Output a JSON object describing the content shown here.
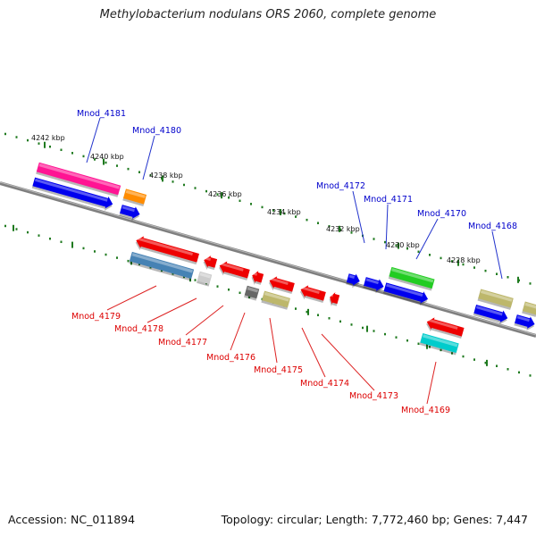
{
  "title": "Methylobacterium nodulans ORS 2060, complete genome",
  "accession_text": "Accession: NC_011894",
  "topology_text": "Topology: circular; Length: 7,772,460 bp; Genes: 7,447",
  "colors": {
    "backbone": "#7f7f7f",
    "tick": "#1f7a1f",
    "top_strand_label": "#0000cc",
    "bottom_strand_label": "#dd0000",
    "leader_top": "#2233cc",
    "leader_bottom": "#dd2222"
  },
  "coordinates": [
    "4242 kbp",
    "4240 kbp",
    "4238 kbp",
    "4236 kbp",
    "4234 kbp",
    "4232 kbp",
    "4230 kbp",
    "4228 kbp"
  ],
  "top_labels": [
    "Mnod_4181",
    "Mnod_4180",
    "Mnod_4172",
    "Mnod_4171",
    "Mnod_4170",
    "Mnod_4168"
  ],
  "bottom_labels": [
    "Mnod_4179",
    "Mnod_4178",
    "Mnod_4177",
    "Mnod_4176",
    "Mnod_4175",
    "Mnod_4174",
    "Mnod_4173",
    "Mnod_4169"
  ],
  "features": [
    {
      "color": "#ff1493"
    },
    {
      "color": "#0000ee"
    },
    {
      "color": "#ff8c00"
    },
    {
      "color": "#0000ee"
    },
    {
      "color": "#0000ee"
    },
    {
      "color": "#0000ee"
    },
    {
      "color": "#0000ee"
    },
    {
      "color": "#22cc22"
    },
    {
      "color": "#0000ee"
    },
    {
      "color": "#bdb76b"
    },
    {
      "color": "#0000ee"
    },
    {
      "color": "#0000ee"
    },
    {
      "color": "#bdb76b"
    },
    {
      "color": "#ee0000"
    },
    {
      "color": "#4682b4"
    },
    {
      "color": "#ee0000"
    },
    {
      "color": "#cccccc"
    },
    {
      "color": "#ee0000"
    },
    {
      "color": "#ee0000"
    },
    {
      "color": "#666666"
    },
    {
      "color": "#ee0000"
    },
    {
      "color": "#bdb76b"
    },
    {
      "color": "#ee0000"
    },
    {
      "color": "#ee0000"
    },
    {
      "color": "#ee0000"
    },
    {
      "color": "#00cccc"
    }
  ]
}
